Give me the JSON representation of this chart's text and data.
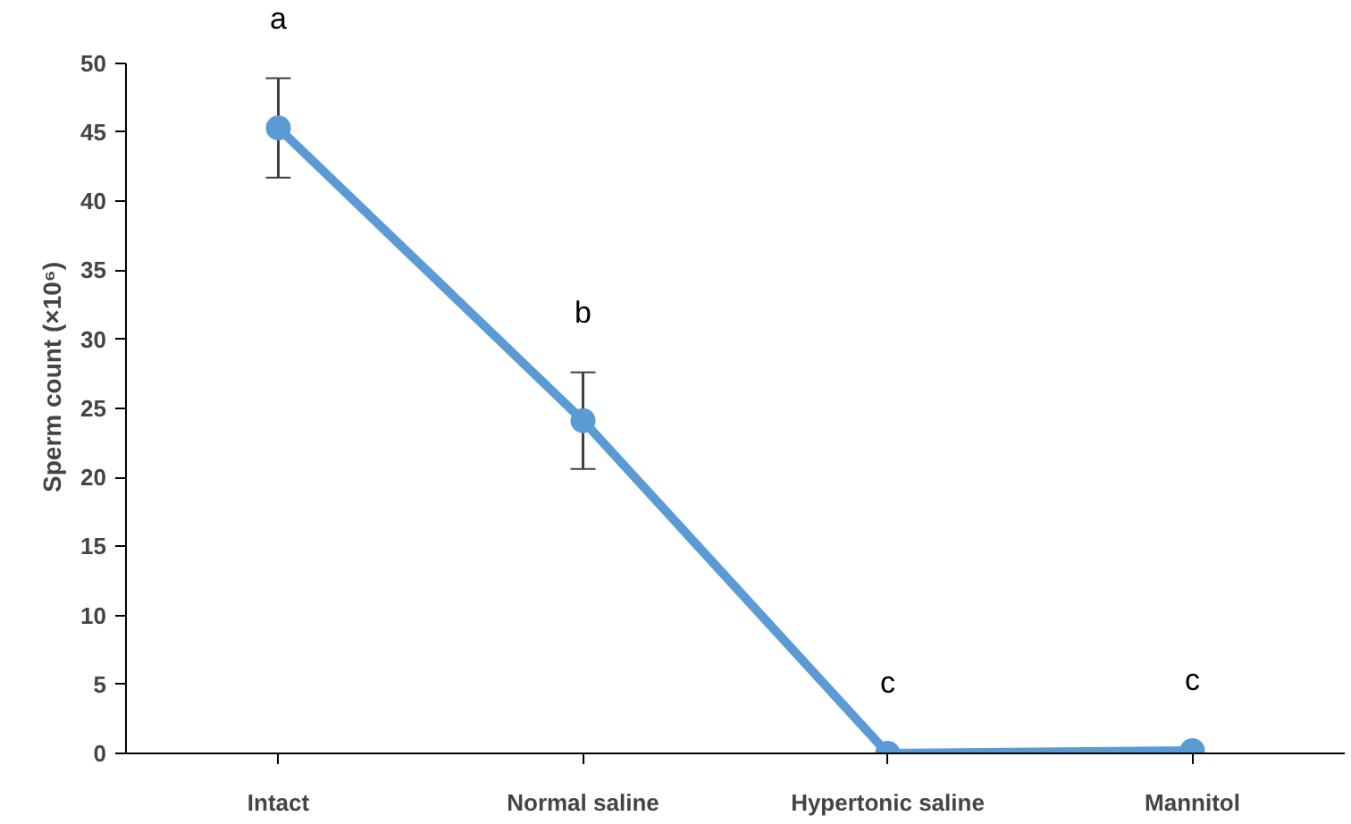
{
  "chart_data": {
    "type": "line",
    "ylabel": "Sperm count (×10⁶)",
    "categories": [
      "Intact",
      "Normal saline",
      "Hypertonic saline",
      "Mannitol"
    ],
    "series": [
      {
        "color": "#5b9bd5",
        "values": [
          45.3,
          24.1,
          0,
          0.2
        ],
        "errors": [
          3.6,
          3.5,
          null,
          null
        ]
      }
    ],
    "ylim": [
      0,
      50
    ],
    "yticks": [
      0,
      5,
      10,
      15,
      20,
      25,
      30,
      35,
      40,
      45,
      50
    ],
    "marker": "circle",
    "line_style": "solid",
    "grid": false,
    "annotations": [
      "a",
      "b",
      "c",
      "c"
    ]
  }
}
